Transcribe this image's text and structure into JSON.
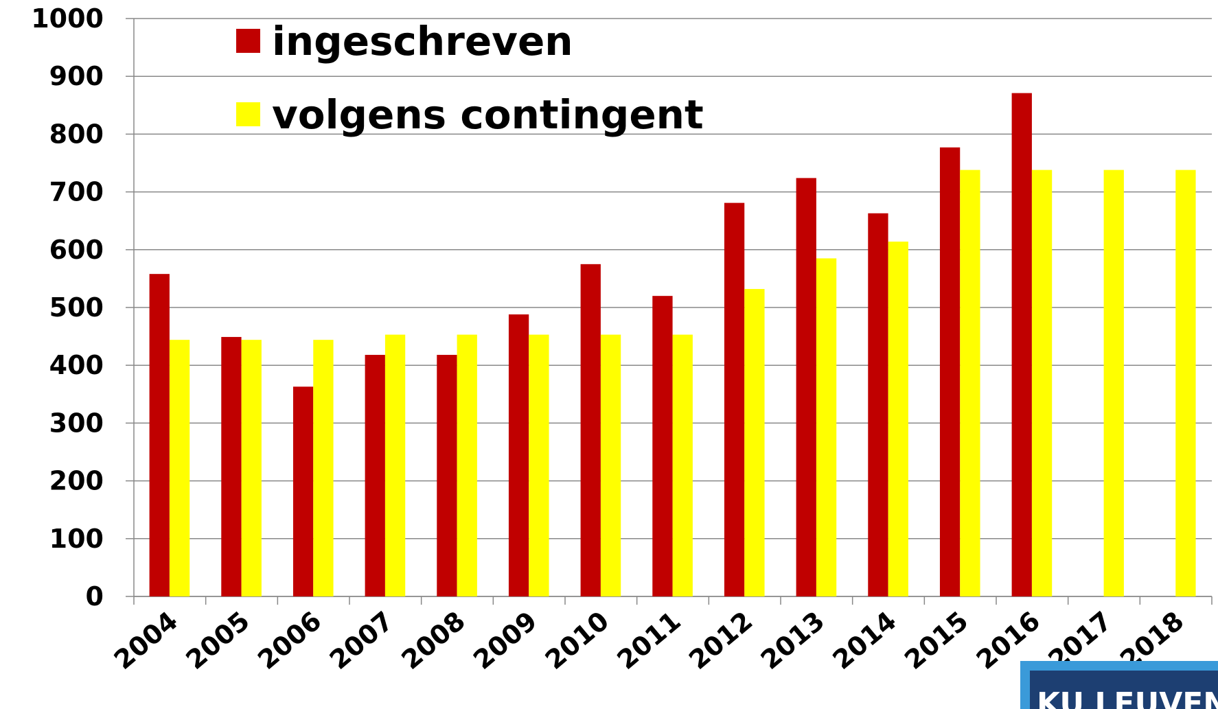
{
  "chart_data": {
    "type": "bar",
    "categories": [
      "2004",
      "2005",
      "2006",
      "2007",
      "2008",
      "2009",
      "2010",
      "2011",
      "2012",
      "2013",
      "2014",
      "2015",
      "2016",
      "2017",
      "2018"
    ],
    "series": [
      {
        "name": "ingeschreven",
        "color": "#c00000",
        "values": [
          558,
          449,
          363,
          418,
          418,
          488,
          575,
          520,
          681,
          724,
          663,
          777,
          871,
          null,
          null
        ]
      },
      {
        "name": "volgens contingent",
        "color": "#ffff00",
        "values": [
          444,
          444,
          444,
          453,
          453,
          453,
          453,
          453,
          532,
          585,
          614,
          738,
          738,
          738,
          738
        ]
      }
    ],
    "ylim": [
      0,
      1000
    ],
    "yticks": [
      0,
      100,
      200,
      300,
      400,
      500,
      600,
      700,
      800,
      900,
      1000
    ],
    "grid": true,
    "legend": "top-left"
  },
  "logo": {
    "text": "KU LEUVEN"
  }
}
